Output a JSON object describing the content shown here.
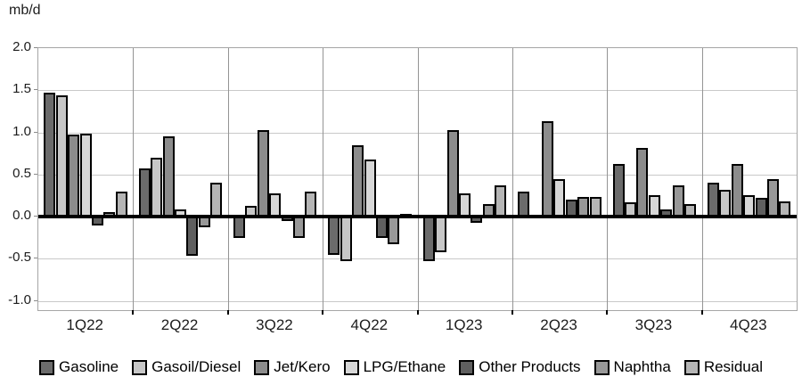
{
  "unit_label": "mb/d",
  "chart_data": {
    "type": "bar",
    "title": "",
    "xlabel": "",
    "ylabel": "mb/d",
    "ylim": [
      -1.0,
      2.0
    ],
    "grid": true,
    "legend_position": "bottom",
    "y_ticks": [
      {
        "value": 2.0,
        "label": "2.0"
      },
      {
        "value": 1.5,
        "label": "1.5"
      },
      {
        "value": 1.0,
        "label": "1.0"
      },
      {
        "value": 0.5,
        "label": "0.5"
      },
      {
        "value": 0.0,
        "label": "0.0"
      },
      {
        "value": -0.5,
        "label": "-0.5"
      },
      {
        "value": -1.0,
        "label": "-1.0"
      }
    ],
    "categories": [
      "1Q22",
      "2Q22",
      "3Q22",
      "4Q22",
      "1Q23",
      "2Q23",
      "3Q23",
      "4Q23"
    ],
    "series": [
      {
        "name": "Gasoline",
        "color": "#6b6b6b",
        "values": [
          1.47,
          0.57,
          -0.25,
          -0.45,
          -0.53,
          0.3,
          0.62,
          0.4
        ]
      },
      {
        "name": "Gasoil/Diesel",
        "color": "#c7c7c7",
        "values": [
          1.44,
          0.7,
          0.13,
          -0.53,
          -0.42,
          0.0,
          0.17,
          0.32
        ]
      },
      {
        "name": "Jet/Kero",
        "color": "#8c8c8c",
        "values": [
          0.97,
          0.95,
          1.03,
          0.85,
          1.03,
          1.13,
          0.82,
          0.63
        ]
      },
      {
        "name": "LPG/Ethane",
        "color": "#d7d7d7",
        "values": [
          0.98,
          0.08,
          0.28,
          0.68,
          0.28,
          0.45,
          0.25,
          0.25
        ]
      },
      {
        "name": "Other Products",
        "color": "#5f5f5f",
        "values": [
          -0.1,
          -0.47,
          -0.05,
          -0.25,
          -0.07,
          0.2,
          0.08,
          0.22
        ]
      },
      {
        "name": "Naphtha",
        "color": "#989898",
        "values": [
          0.05,
          -0.13,
          -0.25,
          -0.33,
          0.15,
          0.23,
          0.37,
          0.45
        ]
      },
      {
        "name": "Residual",
        "color": "#b5b5b5",
        "values": [
          0.3,
          0.4,
          0.3,
          0.03,
          0.37,
          0.23,
          0.15,
          0.18
        ]
      }
    ]
  },
  "colors": {
    "axis": "#000000",
    "gridline": "#c9c9c9",
    "divider": "#949494",
    "plot_border": "#a6a6a6",
    "bar_border": "#000000"
  }
}
